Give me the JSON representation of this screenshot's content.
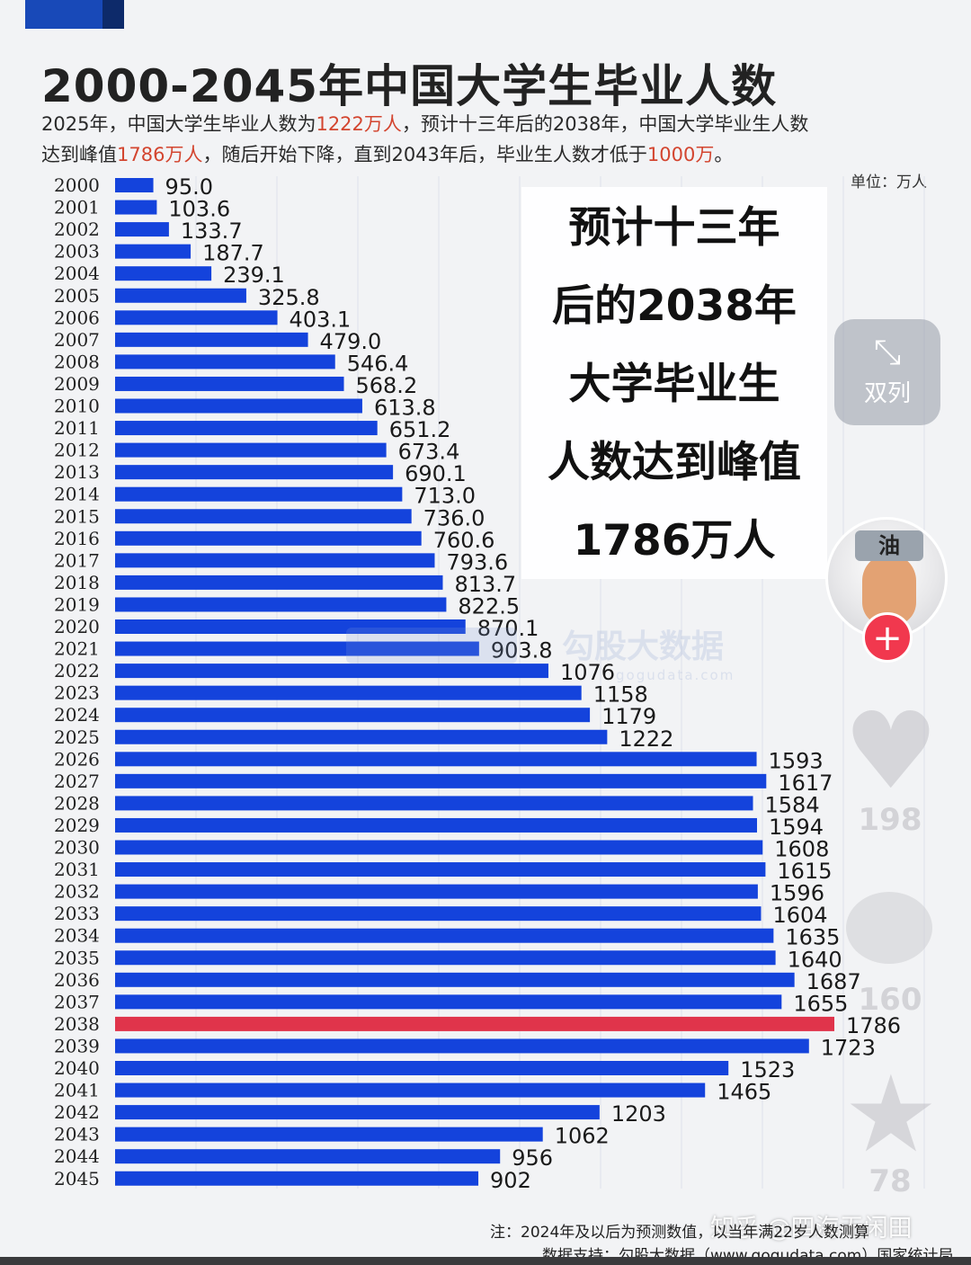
{
  "header": {
    "title": "2000-2045年中国大学生毕业人数",
    "subtitle_line1": [
      "2025年，中国大学生毕业人数为",
      "1222万人",
      "，预计十三年后的2038年，中国大学毕业生人数"
    ],
    "subtitle_line2": [
      "达到峰值",
      "1786万人",
      "，随后开始下降，直到2043年后，毕业生人数才低于",
      "1000万",
      "。"
    ],
    "unit": "单位：万人"
  },
  "callout": {
    "lines": [
      "预计十三年",
      "后的2038年",
      "大学毕业生",
      "人数达到峰值",
      "1786万人"
    ]
  },
  "watermark": {
    "main": "勾股大数据",
    "sub": "gogudata.com"
  },
  "side_panel": {
    "dual_label": "双列",
    "avatar_badge": "油",
    "follow_symbol": "+",
    "like_count": "198",
    "comment_count": "160",
    "favorite_count": "78"
  },
  "footer": {
    "note": "注：2024年及以后为预测数值，以当年满22岁人数测算",
    "source": "数据支持：勾股大数据（www.gogudata.com）国家统计局",
    "platform_watermark": "知乎 @四海无闲田"
  },
  "colors": {
    "bar": "#1443dc",
    "highlight": "#e0344b",
    "accent_text": "#d3452f"
  },
  "chart_data": {
    "type": "bar",
    "orientation": "horizontal",
    "title": "2000-2045年中国大学生毕业人数",
    "unit": "万人",
    "highlight_category": "2038",
    "categories": [
      "2000",
      "2001",
      "2002",
      "2003",
      "2004",
      "2005",
      "2006",
      "2007",
      "2008",
      "2009",
      "2010",
      "2011",
      "2012",
      "2013",
      "2014",
      "2015",
      "2016",
      "2017",
      "2018",
      "2019",
      "2020",
      "2021",
      "2022",
      "2023",
      "2024",
      "2025",
      "2026",
      "2027",
      "2028",
      "2029",
      "2030",
      "2031",
      "2032",
      "2033",
      "2034",
      "2035",
      "2036",
      "2037",
      "2038",
      "2039",
      "2040",
      "2041",
      "2042",
      "2043",
      "2044",
      "2045"
    ],
    "values": [
      95.0,
      103.6,
      133.7,
      187.7,
      239.1,
      325.8,
      403.1,
      479.0,
      546.4,
      568.2,
      613.8,
      651.2,
      673.4,
      690.1,
      713.0,
      736.0,
      760.6,
      793.6,
      813.7,
      822.5,
      870.1,
      903.8,
      1076,
      1158,
      1179,
      1222,
      1593,
      1617,
      1584,
      1594,
      1608,
      1615,
      1596,
      1604,
      1635,
      1640,
      1687,
      1655,
      1786,
      1723,
      1523,
      1465,
      1203,
      1062,
      956,
      902
    ],
    "value_labels": [
      "95.0",
      "103.6",
      "133.7",
      "187.7",
      "239.1",
      "325.8",
      "403.1",
      "479.0",
      "546.4",
      "568.2",
      "613.8",
      "651.2",
      "673.4",
      "690.1",
      "713.0",
      "736.0",
      "760.6",
      "793.6",
      "813.7",
      "822.5",
      "870.1",
      "903.8",
      "1076",
      "1158",
      "1179",
      "1222",
      "1593",
      "1617",
      "1584",
      "1594",
      "1608",
      "1615",
      "1596",
      "1604",
      "1635",
      "1640",
      "1687",
      "1655",
      "1786",
      "1723",
      "1523",
      "1465",
      "1203",
      "1062",
      "956",
      "902"
    ],
    "xlim": [
      0,
      1786
    ],
    "grid": true,
    "legend": "none"
  }
}
